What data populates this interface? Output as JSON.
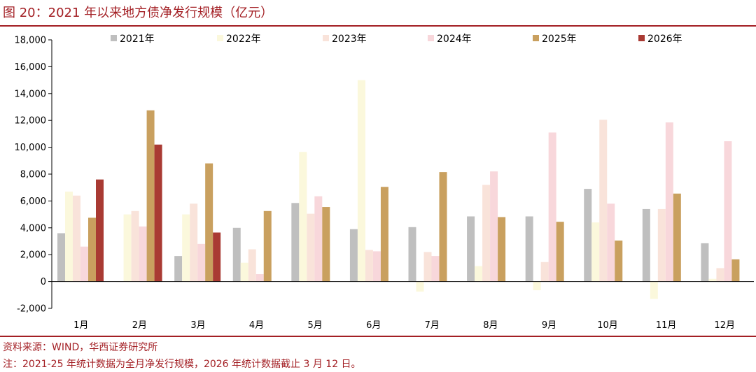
{
  "figure": {
    "title": "图 20：2021 年以来地方债净发行规模（亿元）",
    "source": "资料来源：WIND，华西证券研究所",
    "note": "注：2021-25 年统计数据为全月净发行规模，2026 年统计数据截止 3 月 12 日。"
  },
  "chart_data": {
    "type": "bar",
    "title": "2021 年以来地方债净发行规模（亿元）",
    "xlabel": "",
    "ylabel": "亿元",
    "ylim": [
      -2000,
      18000
    ],
    "yticks": [
      -2000,
      0,
      2000,
      4000,
      6000,
      8000,
      10000,
      12000,
      14000,
      16000,
      18000
    ],
    "ytick_labels": [
      "-2,000",
      "0",
      "2,000",
      "4,000",
      "6,000",
      "8,000",
      "10,000",
      "12,000",
      "14,000",
      "16,000",
      "18,000"
    ],
    "legend_position": "top",
    "categories": [
      "1月",
      "2月",
      "3月",
      "4月",
      "5月",
      "6月",
      "7月",
      "8月",
      "9月",
      "10月",
      "11月",
      "12月"
    ],
    "series": [
      {
        "name": "2021年",
        "color": "#bfbfbf",
        "values": [
          3600,
          0,
          1900,
          4000,
          5850,
          3900,
          4050,
          4850,
          4850,
          6900,
          5400,
          2850
        ]
      },
      {
        "name": "2022年",
        "color": "#fbf8dc",
        "values": [
          6700,
          5000,
          5000,
          1400,
          9650,
          15000,
          -750,
          1150,
          -650,
          4400,
          -1300,
          200
        ]
      },
      {
        "name": "2023年",
        "color": "#f9e3da",
        "values": [
          6400,
          5250,
          5800,
          2400,
          5050,
          2350,
          2200,
          7200,
          1450,
          12050,
          5400,
          1000
        ]
      },
      {
        "name": "2024年",
        "color": "#f8d7db",
        "values": [
          2600,
          4100,
          2800,
          550,
          6350,
          2250,
          1900,
          8200,
          11100,
          5800,
          11850,
          10450
        ]
      },
      {
        "name": "2025年",
        "color": "#c9a05f",
        "values": [
          4750,
          12750,
          8800,
          5250,
          5550,
          7050,
          8150,
          4800,
          4450,
          3050,
          6550,
          1650
        ]
      },
      {
        "name": "2026年",
        "color": "#a93a33",
        "values": [
          7600,
          10200,
          3650,
          null,
          null,
          null,
          null,
          null,
          null,
          null,
          null,
          null
        ]
      }
    ]
  }
}
